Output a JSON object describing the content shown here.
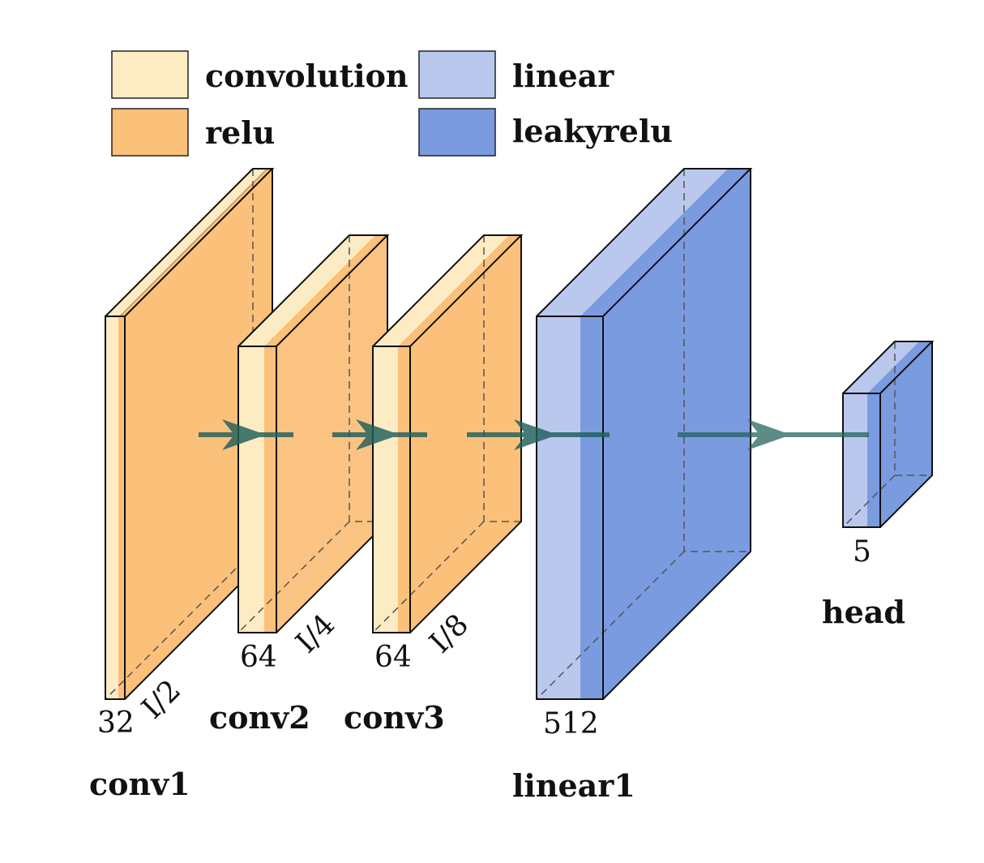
{
  "legend": {
    "items": [
      {
        "label": "convolution",
        "color": "#FDEBC3"
      },
      {
        "label": "relu",
        "color": "#FBC07A"
      },
      {
        "label": "linear",
        "color": "#BAC8EE"
      },
      {
        "label": "leakyrelu",
        "color": "#7A9BE0"
      }
    ]
  },
  "layers": {
    "conv1": {
      "name": "conv1",
      "channels": "32",
      "size": "I/2"
    },
    "conv2": {
      "name": "conv2",
      "channels": "64",
      "size": "I/4"
    },
    "conv3": {
      "name": "conv3",
      "channels": "64",
      "size": "I/8"
    },
    "linear1": {
      "name": "linear1",
      "channels": "512"
    },
    "head": {
      "name": "head",
      "channels": "5"
    }
  },
  "colors": {
    "conv_face": "#FDEBC3",
    "relu_face": "#FBC07A",
    "linear_face": "#BAC8EE",
    "leaky_face": "#7A9BE0",
    "arrow": "#1F5F5B"
  }
}
